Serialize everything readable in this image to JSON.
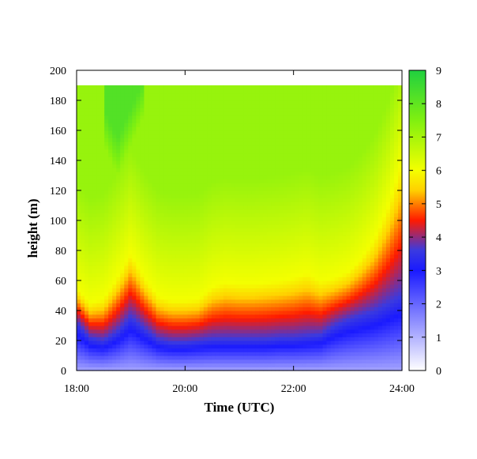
{
  "chart_data": {
    "type": "heatmap",
    "title": "",
    "xlabel": "Time (UTC)",
    "ylabel": "height (m)",
    "x_ticks": [
      "18:00",
      "20:00",
      "22:00",
      "24:00"
    ],
    "x_range_hours": [
      18,
      24
    ],
    "y_ticks": [
      "0",
      "20",
      "40",
      "60",
      "80",
      "100",
      "120",
      "140",
      "160",
      "180",
      "200"
    ],
    "ylim": [
      0,
      200
    ],
    "data_top_height": 190,
    "colorbar": {
      "range": [
        0,
        9
      ],
      "ticks": [
        "0",
        "1",
        "2",
        "3",
        "4",
        "5",
        "6",
        "7",
        "8",
        "9"
      ],
      "stops": [
        {
          "value": 0,
          "color": "#ffffff"
        },
        {
          "value": 3,
          "color": "#1a1aff"
        },
        {
          "value": 3.6,
          "color": "#3a3ae0"
        },
        {
          "value": 4.5,
          "color": "#ff1a00"
        },
        {
          "value": 5.4,
          "color": "#ffd000"
        },
        {
          "value": 6,
          "color": "#f4ff00"
        },
        {
          "value": 7.5,
          "color": "#80f010"
        },
        {
          "value": 9,
          "color": "#20d040"
        }
      ]
    },
    "grid": false,
    "legend": "colorbar-right",
    "time_hours": [
      18.0,
      18.25,
      18.5,
      18.75,
      19.0,
      19.25,
      19.5,
      19.75,
      20.0,
      20.25,
      20.5,
      20.75,
      21.0,
      21.25,
      21.5,
      21.75,
      22.0,
      22.25,
      22.5,
      22.75,
      23.0,
      23.25,
      23.5,
      23.75,
      24.0
    ],
    "series": [
      {
        "name": "h_blue_red_boundary_m",
        "values": [
          32,
          22,
          20,
          26,
          36,
          28,
          21,
          19,
          19,
          20,
          21,
          21,
          21,
          21,
          21,
          22,
          22,
          23,
          24,
          30,
          34,
          37,
          40,
          45,
          50
        ]
      },
      {
        "name": "h_red_yellow_boundary_m",
        "values": [
          55,
          45,
          48,
          62,
          78,
          62,
          50,
          47,
          47,
          48,
          56,
          59,
          58,
          58,
          59,
          60,
          62,
          65,
          60,
          62,
          66,
          75,
          88,
          110,
          140
        ]
      },
      {
        "name": "h_green_peak_m",
        "values": [
          999,
          999,
          150,
          130,
          150,
          170,
          999,
          999,
          999,
          999,
          999,
          999,
          999,
          999,
          999,
          999,
          999,
          999,
          999,
          999,
          999,
          999,
          999,
          999,
          999
        ]
      }
    ]
  }
}
